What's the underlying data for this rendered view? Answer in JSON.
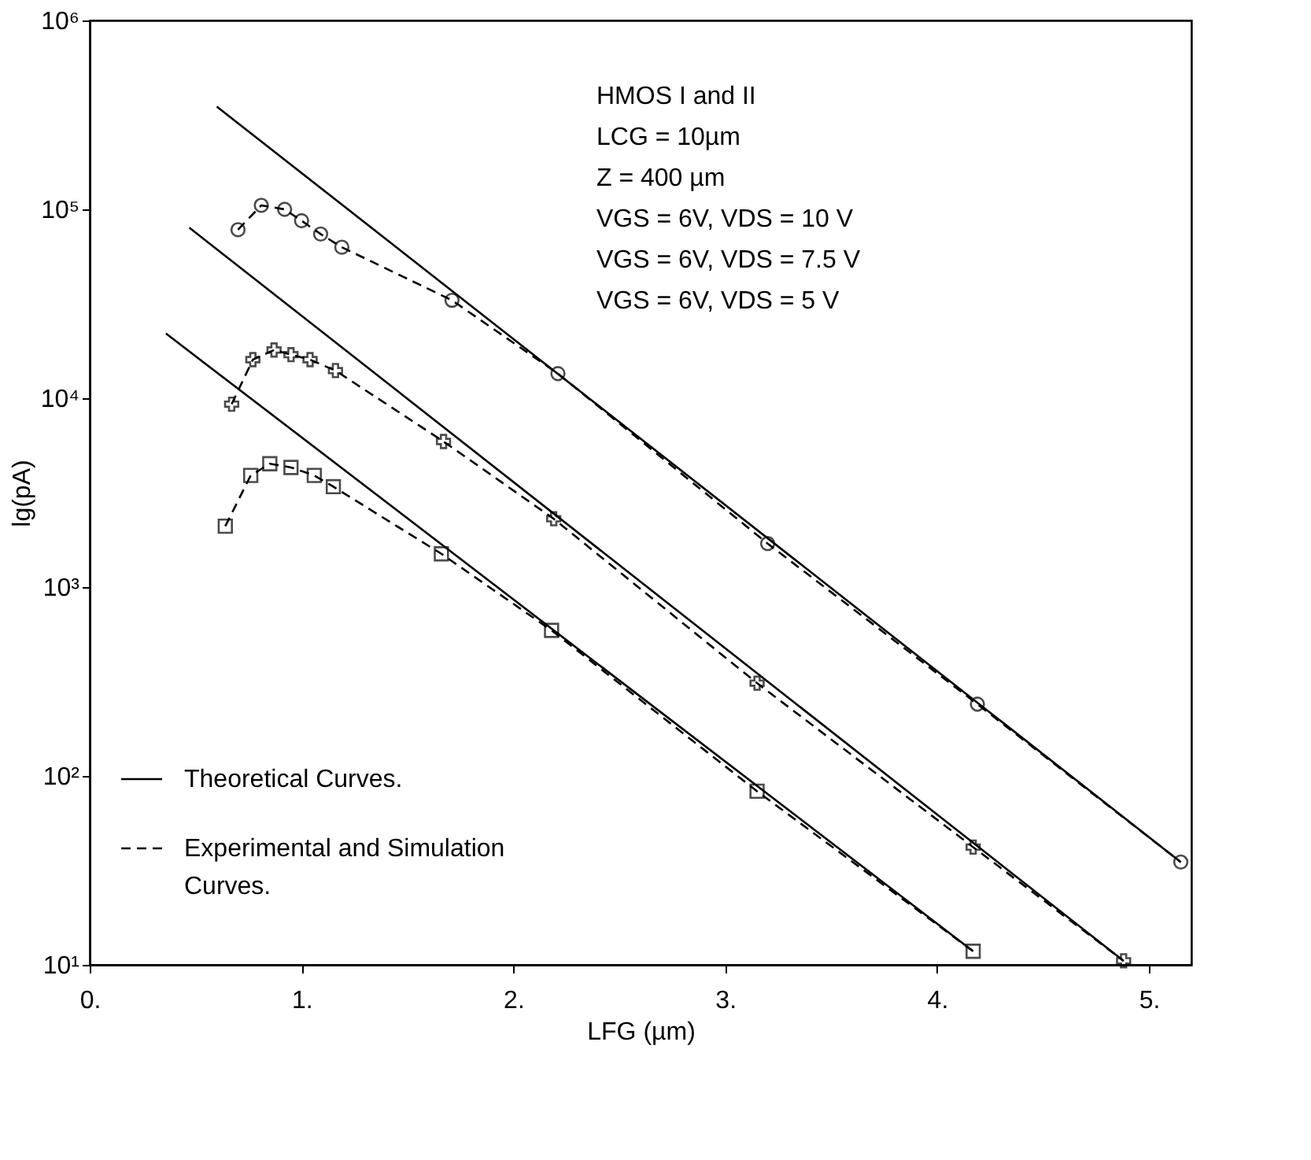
{
  "chart_data": {
    "type": "line",
    "xlabel": "LFG (µm)",
    "ylabel": "lg(pA)",
    "log": "y",
    "grid": false,
    "legend": "bottom left",
    "xlim": [
      0,
      5.2
    ],
    "xticks": [
      {
        "value": 0,
        "label": "0."
      },
      {
        "value": 1,
        "label": "1."
      },
      {
        "value": 2,
        "label": "2."
      },
      {
        "value": 3,
        "label": "3."
      },
      {
        "value": 4,
        "label": "4."
      },
      {
        "value": 5,
        "label": "5."
      }
    ],
    "ylim": [
      10,
      1000000
    ],
    "yticks": [
      {
        "value": 10,
        "label": "10¹"
      },
      {
        "value": 100,
        "label": "10²"
      },
      {
        "value": 1000,
        "label": "10³"
      },
      {
        "value": 10000,
        "label": "10⁴"
      },
      {
        "value": 100000,
        "label": "10⁵"
      },
      {
        "value": 1000000,
        "label": "10⁶"
      }
    ],
    "annotations": [
      "HMOS I and II",
      "LCG = 10µm",
      "Z     = 400 µm",
      "VGS = 6V, VDS = 10 V",
      "VGS = 6V, VDS = 7.5 V",
      "VGS = 6V, VDS = 5 V"
    ],
    "series": [
      {
        "name": "Theoretical Curves.",
        "type": "line",
        "line_style": "solid",
        "color": "#000000",
        "x": [
          0.6,
          5.15
        ],
        "values": [
          350000,
          35
        ]
      },
      {
        "type": "line",
        "line_style": "solid",
        "color": "#000000",
        "x": [
          0.47,
          4.88
        ],
        "values": [
          80000,
          10.5
        ]
      },
      {
        "type": "line",
        "line_style": "solid",
        "color": "#000000",
        "x": [
          0.36,
          4.17
        ],
        "values": [
          22000,
          11.8
        ]
      },
      {
        "name": "Experimental and Simulation Curves.",
        "type": "line",
        "line_style": "dashed",
        "marker": "circle",
        "color": "#000000",
        "x": [
          0.7,
          0.81,
          0.92,
          1.0,
          1.09,
          1.19,
          1.71,
          2.21,
          3.2,
          4.19,
          5.15
        ],
        "values": [
          78000,
          105000,
          100000,
          87000,
          74000,
          63000,
          33000,
          13500,
          1700,
          240,
          35
        ]
      },
      {
        "type": "line",
        "line_style": "dashed",
        "marker": "cross",
        "color": "#000000",
        "x": [
          0.67,
          0.77,
          0.87,
          0.95,
          1.04,
          1.16,
          1.67,
          2.19,
          3.15,
          4.17,
          4.88
        ],
        "values": [
          9300,
          16000,
          18000,
          17000,
          16000,
          14000,
          5900,
          2300,
          310,
          42,
          10.5
        ]
      },
      {
        "type": "line",
        "line_style": "dashed",
        "marker": "square",
        "color": "#000000",
        "x": [
          0.64,
          0.76,
          0.85,
          0.95,
          1.06,
          1.15,
          1.66,
          2.18,
          3.15,
          4.17
        ],
        "values": [
          2100,
          3900,
          4500,
          4300,
          3900,
          3400,
          1500,
          590,
          83,
          11.8
        ]
      }
    ]
  }
}
